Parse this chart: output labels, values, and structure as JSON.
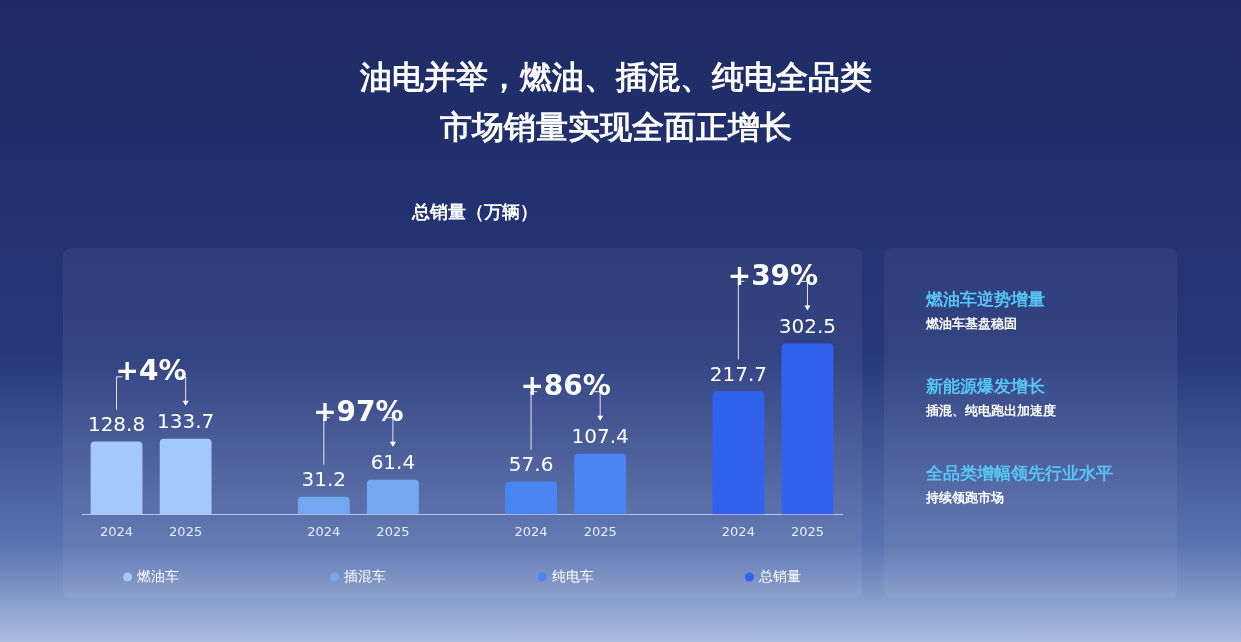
{
  "chart_data": [
    {
      "type": "bar",
      "title": "油电并举，燃油、插混、纯电全品类市场销量实现全面正增长",
      "subtitle": "总销量（万辆）",
      "categories": [
        "2024",
        "2025",
        null,
        "2024",
        "2025",
        null,
        "2024",
        "2025",
        null,
        "2024",
        "2025"
      ],
      "series": [
        {
          "name": "燃油车",
          "color": "#a4c8fc",
          "values": [
            128.8,
            133.7,
            null,
            null,
            null,
            null,
            null,
            null,
            null,
            null,
            null
          ]
        },
        {
          "name": "插混车",
          "color": "#73a8f0",
          "values": [
            null,
            null,
            null,
            31.2,
            61.4,
            null,
            null,
            null,
            null,
            null,
            null
          ]
        },
        {
          "name": "纯电车",
          "color": "#4a86f2",
          "values": [
            null,
            null,
            null,
            null,
            null,
            null,
            57.6,
            107.4,
            null,
            null,
            null
          ]
        },
        {
          "name": "总销量",
          "color": "#3162ee",
          "values": [
            null,
            null,
            null,
            null,
            null,
            null,
            null,
            null,
            null,
            217.7,
            302.5
          ]
        }
      ],
      "annotations": [
        "+4%",
        "+97%",
        "+86%",
        "+39%"
      ],
      "data_labels": true,
      "legend": "bottom",
      "grid": false
    },
    {
      "type": "other",
      "annotations": [
        "燃油车逆势增量",
        "燃油车基盘稳固",
        "新能源爆发增长",
        "插混、纯电跑出加速度",
        "全品类增幅领先行业水平",
        "持续领跑市场"
      ]
    }
  ]
}
